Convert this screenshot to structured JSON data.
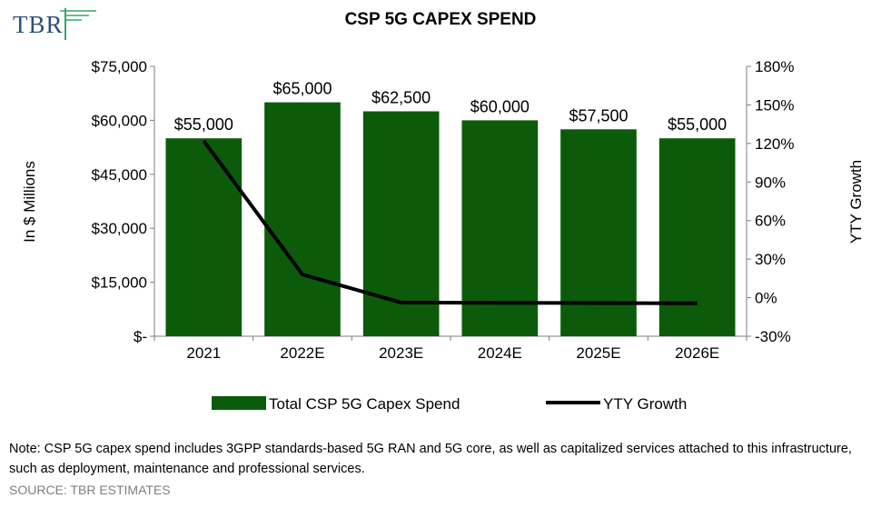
{
  "logo": {
    "text": "TBR",
    "accent_color": "#3aa36a",
    "text_color": "#2f4f7f"
  },
  "chart_data": {
    "type": "bar",
    "title": "CSP 5G CAPEX SPEND",
    "categories": [
      "2021",
      "2022E",
      "2023E",
      "2024E",
      "2025E",
      "2026E"
    ],
    "series": [
      {
        "name": "Total CSP 5G Capex Spend",
        "type": "bar",
        "axis": "left",
        "color": "#0b5b0b",
        "values": [
          55000,
          65000,
          62500,
          60000,
          57500,
          55000
        ]
      },
      {
        "name": "YTY Growth",
        "type": "line",
        "axis": "right",
        "color": "#000000",
        "values": [
          1.22,
          0.18,
          -0.038,
          -0.04,
          -0.042,
          -0.043
        ]
      }
    ],
    "data_labels": [
      "$55,000",
      "$65,000",
      "$62,500",
      "$60,000",
      "$57,500",
      "$55,000"
    ],
    "ylabel": "In $ Millions",
    "y2label": "YTY Growth",
    "ylim": [
      0,
      75000
    ],
    "y2lim": [
      -0.3,
      1.8
    ],
    "yticks": [
      0,
      15000,
      30000,
      45000,
      60000,
      75000
    ],
    "ytick_labels": [
      "$-",
      "$15,000",
      "$30,000",
      "$45,000",
      "$60,000",
      "$75,000"
    ],
    "y2ticks": [
      -0.3,
      0,
      0.3,
      0.6,
      0.9,
      1.2,
      1.5,
      1.8
    ],
    "y2tick_labels": [
      "-30%",
      "0%",
      "30%",
      "60%",
      "90%",
      "120%",
      "150%",
      "180%"
    ],
    "grid": false,
    "legend_position": "bottom"
  },
  "note": "Note: CSP 5G capex spend includes 3GPP standards-based 5G RAN and 5G core, as well as capitalized services attached to this infrastructure, such as deployment, maintenance and professional services.",
  "source": "SOURCE: TBR ESTIMATES"
}
